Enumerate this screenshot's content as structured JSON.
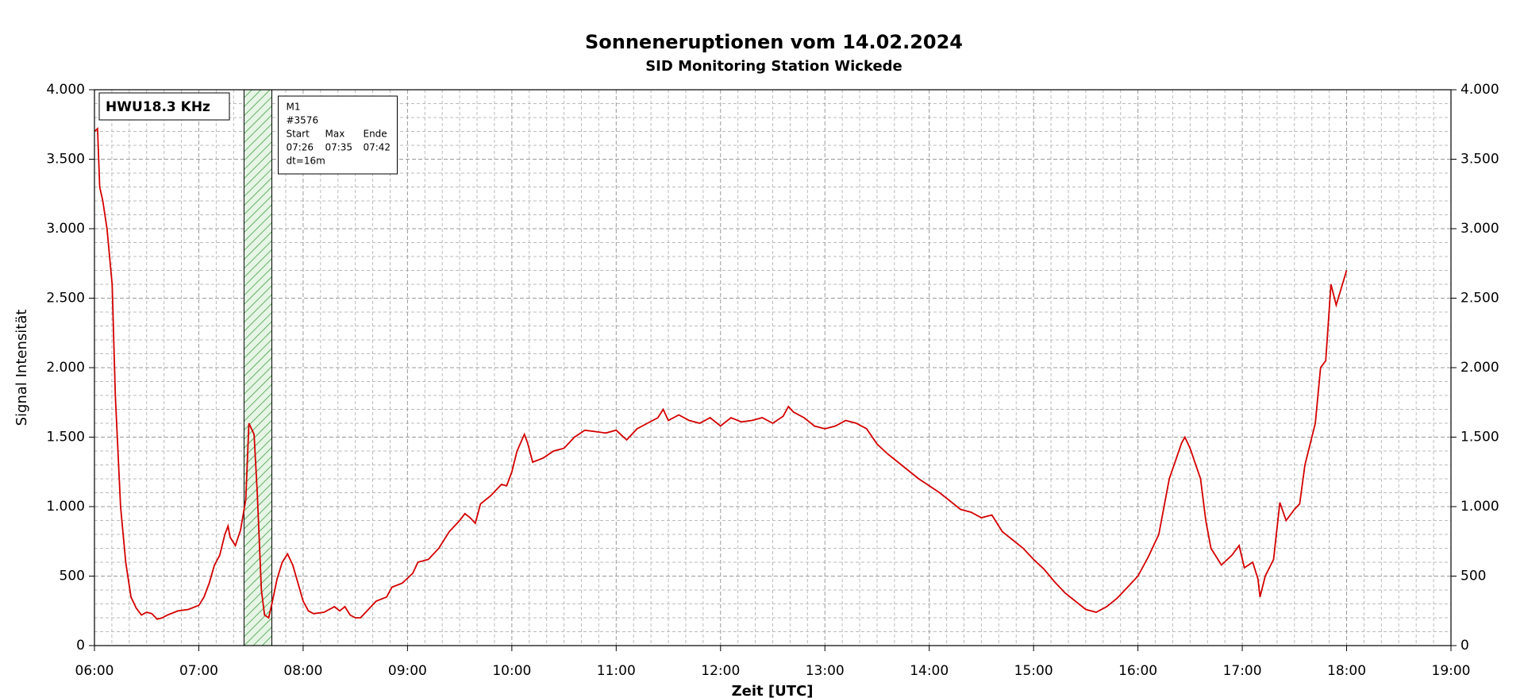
{
  "chart_data": {
    "type": "line",
    "title": "Sonneneruptionen vom 14.02.2024",
    "subtitle": "SID Monitoring Station Wickede",
    "xlabel": "Zeit [UTC]",
    "ylabel": "Signal Intensität",
    "xlim": [
      6,
      19
    ],
    "xticks": [
      {
        "value": 6,
        "label": "06:00"
      },
      {
        "value": 7,
        "label": "07:00"
      },
      {
        "value": 8,
        "label": "08:00"
      },
      {
        "value": 9,
        "label": "09:00"
      },
      {
        "value": 10,
        "label": "10:00"
      },
      {
        "value": 11,
        "label": "11:00"
      },
      {
        "value": 12,
        "label": "12:00"
      },
      {
        "value": 13,
        "label": "13:00"
      },
      {
        "value": 14,
        "label": "14:00"
      },
      {
        "value": 15,
        "label": "15:00"
      },
      {
        "value": 16,
        "label": "16:00"
      },
      {
        "value": 17,
        "label": "17:00"
      },
      {
        "value": 18,
        "label": "18:00"
      },
      {
        "value": 19,
        "label": "19:00"
      }
    ],
    "ylim": [
      0,
      4000
    ],
    "yticks": [
      0,
      500,
      {
        "value": 1000,
        "label": "1.000"
      },
      {
        "value": 1500,
        "label": "1.500"
      },
      {
        "value": 2000,
        "label": "2.000"
      },
      {
        "value": 2500,
        "label": "2.500"
      },
      {
        "value": 3000,
        "label": "3.000"
      },
      {
        "value": 3500,
        "label": "3.500"
      },
      {
        "value": 4000,
        "label": "4.000"
      }
    ],
    "grid": true,
    "legend": "upper left",
    "x": [
      6.0,
      6.03,
      6.05,
      6.08,
      6.12,
      6.17,
      6.2,
      6.25,
      6.3,
      6.35,
      6.4,
      6.45,
      6.5,
      6.55,
      6.6,
      6.65,
      6.7,
      6.8,
      6.9,
      7.0,
      7.05,
      7.1,
      7.15,
      7.2,
      7.25,
      7.28,
      7.3,
      7.35,
      7.4,
      7.45,
      7.48,
      7.53,
      7.56,
      7.6,
      7.63,
      7.67,
      7.7,
      7.75,
      7.8,
      7.85,
      7.9,
      7.95,
      8.0,
      8.05,
      8.1,
      8.2,
      8.3,
      8.35,
      8.4,
      8.45,
      8.5,
      8.55,
      8.6,
      8.7,
      8.8,
      8.85,
      8.95,
      9.05,
      9.1,
      9.2,
      9.3,
      9.4,
      9.5,
      9.55,
      9.6,
      9.65,
      9.7,
      9.8,
      9.9,
      9.95,
      10.0,
      10.05,
      10.12,
      10.15,
      10.2,
      10.3,
      10.4,
      10.5,
      10.6,
      10.7,
      10.8,
      10.9,
      11.0,
      11.1,
      11.2,
      11.3,
      11.4,
      11.45,
      11.5,
      11.6,
      11.7,
      11.8,
      11.9,
      12.0,
      12.1,
      12.2,
      12.3,
      12.4,
      12.5,
      12.6,
      12.65,
      12.7,
      12.8,
      12.9,
      13.0,
      13.1,
      13.2,
      13.3,
      13.4,
      13.5,
      13.6,
      13.7,
      13.8,
      13.9,
      14.0,
      14.1,
      14.2,
      14.3,
      14.4,
      14.5,
      14.6,
      14.7,
      14.8,
      14.9,
      15.0,
      15.1,
      15.2,
      15.3,
      15.4,
      15.5,
      15.6,
      15.7,
      15.8,
      15.9,
      16.0,
      16.1,
      16.2,
      16.3,
      16.42,
      16.45,
      16.5,
      16.6,
      16.65,
      16.7,
      16.8,
      16.9,
      16.97,
      17.02,
      17.1,
      17.15,
      17.17,
      17.22,
      17.3,
      17.36,
      17.42,
      17.5,
      17.55,
      17.6,
      17.7,
      17.75,
      17.8,
      17.85,
      17.9,
      18.0
    ],
    "series": [
      {
        "name": "HWU18.3 KHz",
        "color": "#d40000",
        "values": [
          3700,
          3720,
          3300,
          3200,
          3000,
          2600,
          1800,
          1000,
          600,
          350,
          270,
          220,
          240,
          230,
          190,
          200,
          220,
          250,
          260,
          290,
          350,
          450,
          580,
          650,
          800,
          860,
          780,
          720,
          830,
          1050,
          1600,
          1520,
          1100,
          400,
          220,
          200,
          300,
          480,
          600,
          660,
          580,
          450,
          320,
          250,
          230,
          240,
          280,
          250,
          280,
          220,
          200,
          200,
          240,
          320,
          350,
          420,
          450,
          520,
          600,
          620,
          700,
          820,
          900,
          950,
          920,
          880,
          1020,
          1080,
          1160,
          1150,
          1250,
          1400,
          1520,
          1460,
          1320,
          1350,
          1400,
          1420,
          1500,
          1550,
          1540,
          1530,
          1550,
          1480,
          1560,
          1600,
          1640,
          1700,
          1620,
          1660,
          1620,
          1600,
          1640,
          1580,
          1640,
          1610,
          1620,
          1640,
          1600,
          1650,
          1720,
          1680,
          1640,
          1580,
          1560,
          1580,
          1620,
          1600,
          1560,
          1450,
          1380,
          1320,
          1260,
          1200,
          1150,
          1100,
          1040,
          980,
          960,
          920,
          940,
          820,
          760,
          700,
          620,
          550,
          460,
          380,
          320,
          260,
          240,
          280,
          340,
          420,
          500,
          640,
          800,
          1200,
          1460,
          1500,
          1420,
          1200,
          900,
          700,
          580,
          650,
          720,
          560,
          600,
          480,
          350,
          500,
          620,
          1030,
          900,
          980,
          1020,
          1300,
          1600,
          2000,
          2050,
          2600,
          2450,
          2700
        ]
      }
    ],
    "event": {
      "label": "M1",
      "id": "#3576",
      "headers": [
        "Start",
        "Max",
        "Ende"
      ],
      "start": {
        "value": 7.4333,
        "label": "07:26"
      },
      "max": {
        "value": 7.5833,
        "label": "07:35"
      },
      "end": {
        "value": 7.7,
        "label": "07:42"
      },
      "duration": "dt=16m"
    }
  }
}
